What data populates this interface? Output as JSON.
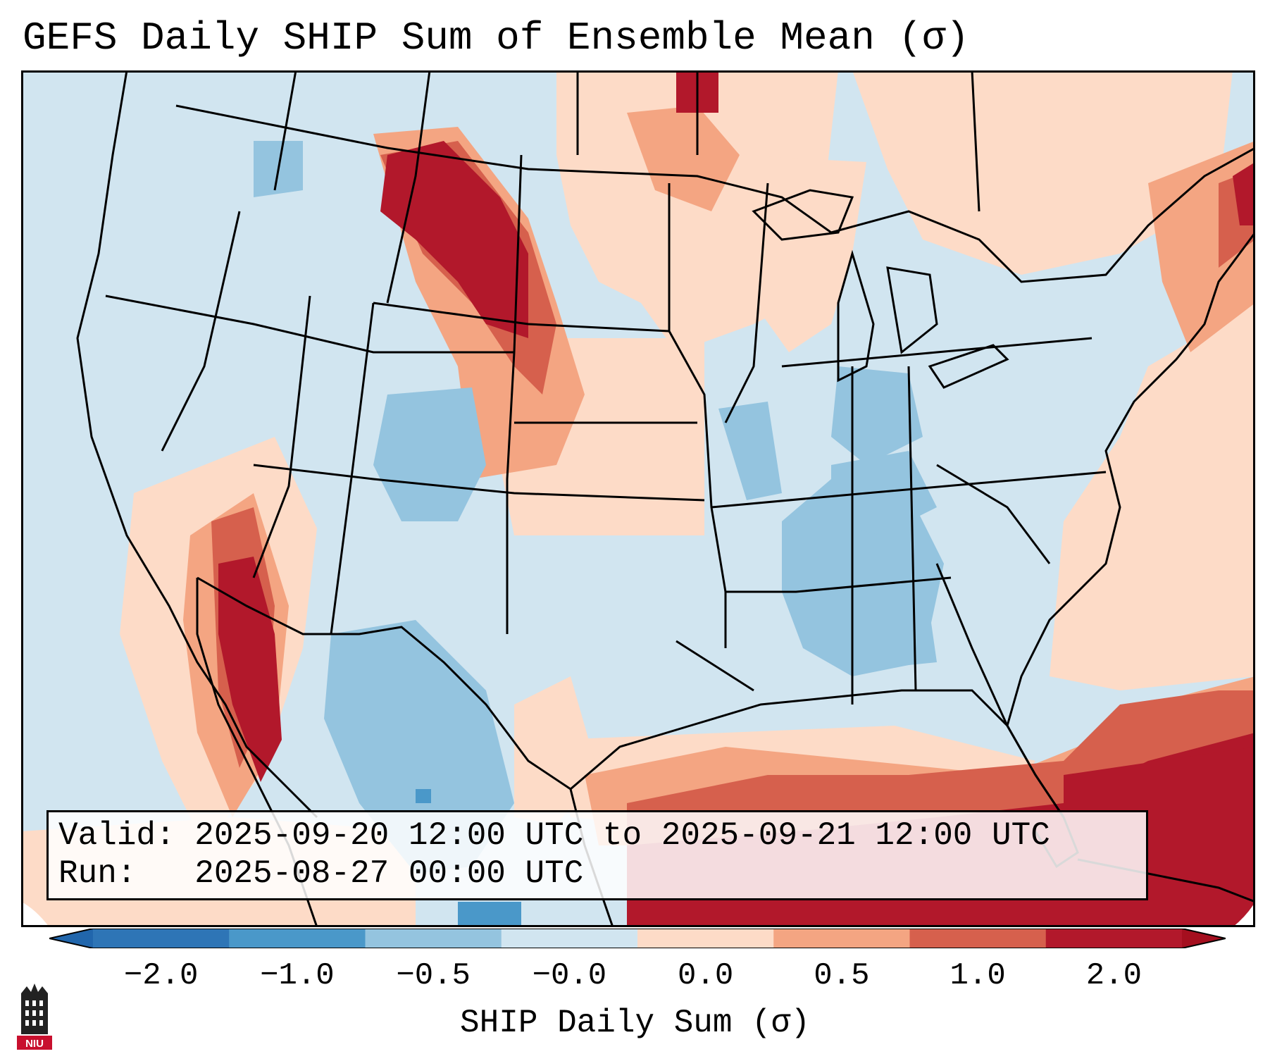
{
  "title": "GEFS Daily SHIP Sum of Ensemble Mean (σ)",
  "info": {
    "valid_line": "Valid: 2025-09-20 12:00 UTC to 2025-09-21 12:00 UTC",
    "run_line": "Run:   2025-08-27 00:00 UTC"
  },
  "colorbar": {
    "label": "SHIP Daily Sum (σ)",
    "ticks": [
      "−2.0",
      "−1.0",
      "−0.5",
      "−0.0",
      "0.0",
      "0.5",
      "1.0",
      "2.0"
    ],
    "colors": [
      "#2e75b6",
      "#4a98c9",
      "#94c4df",
      "#d1e5f0",
      "#fddbc7",
      "#f4a582",
      "#d6604d",
      "#b2182b"
    ],
    "extend_low_color": "#2166ac",
    "extend_high_color": "#a50f1f"
  },
  "map": {
    "ocean_color": "#d1e5f0",
    "land_boundary_color": "#000000"
  },
  "logo": {
    "text": "NIU",
    "color": "#c8102e"
  }
}
